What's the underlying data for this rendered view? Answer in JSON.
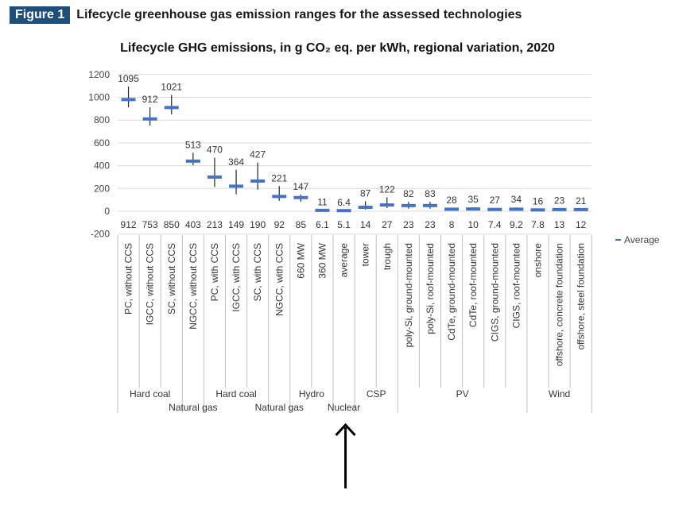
{
  "figure": {
    "badge": "Figure 1",
    "title": "Lifecycle greenhouse gas emission ranges for the assessed technologies"
  },
  "chart_data": {
    "type": "range",
    "title": "Lifecycle GHG emissions, in g CO₂ eq. per kWh, regional variation, 2020",
    "ylim": [
      -200,
      1200
    ],
    "yticks": [
      -200,
      0,
      200,
      400,
      600,
      800,
      1000,
      1200
    ],
    "legend": {
      "label": "Average",
      "color": "#4472c4",
      "position": "right"
    },
    "categories": [
      {
        "label": "PC, without CCS",
        "min": 912,
        "max": 1095,
        "avg": 980,
        "min_text": "912",
        "max_text": "1095"
      },
      {
        "label": "IGCC, without CCS",
        "min": 753,
        "max": 912,
        "avg": 810,
        "min_text": "753",
        "max_text": "912"
      },
      {
        "label": "SC, without CCS",
        "min": 850,
        "max": 1021,
        "avg": 910,
        "min_text": "850",
        "max_text": "1021"
      },
      {
        "label": "NGCC, without CCS",
        "min": 403,
        "max": 513,
        "avg": 440,
        "min_text": "403",
        "max_text": "513"
      },
      {
        "label": "PC, with CCS",
        "min": 213,
        "max": 470,
        "avg": 300,
        "min_text": "213",
        "max_text": "470"
      },
      {
        "label": "IGCC, with CCS",
        "min": 149,
        "max": 364,
        "avg": 220,
        "min_text": "149",
        "max_text": "364"
      },
      {
        "label": "SC, with CCS",
        "min": 190,
        "max": 427,
        "avg": 265,
        "min_text": "190",
        "max_text": "427"
      },
      {
        "label": "NGCC, with CCS",
        "min": 92,
        "max": 221,
        "avg": 130,
        "min_text": "92",
        "max_text": "221"
      },
      {
        "label": "660 MW",
        "min": 85,
        "max": 147,
        "avg": 120,
        "min_text": "85",
        "max_text": "147"
      },
      {
        "label": "360 MW",
        "min": 6.1,
        "max": 11,
        "avg": 8,
        "min_text": "6.1",
        "max_text": "11"
      },
      {
        "label": "average",
        "min": 5.1,
        "max": 6.4,
        "avg": 5.7,
        "min_text": "5.1",
        "max_text": "6.4"
      },
      {
        "label": "tower",
        "min": 14,
        "max": 87,
        "avg": 35,
        "min_text": "14",
        "max_text": "87"
      },
      {
        "label": "trough",
        "min": 27,
        "max": 122,
        "avg": 55,
        "min_text": "27",
        "max_text": "122"
      },
      {
        "label": "poly-Si, ground-mounted",
        "min": 23,
        "max": 82,
        "avg": 50,
        "min_text": "23",
        "max_text": "82"
      },
      {
        "label": "poly-Si, roof-mounted",
        "min": 23,
        "max": 83,
        "avg": 50,
        "min_text": "23",
        "max_text": "83"
      },
      {
        "label": "CdTe, ground-mounted",
        "min": 8,
        "max": 28,
        "avg": 18,
        "min_text": "8",
        "max_text": "28"
      },
      {
        "label": "CdTe, roof-mounted",
        "min": 10,
        "max": 35,
        "avg": 20,
        "min_text": "10",
        "max_text": "35"
      },
      {
        "label": "CIGS, ground-mounted",
        "min": 7.4,
        "max": 27,
        "avg": 16,
        "min_text": "7.4",
        "max_text": "27"
      },
      {
        "label": "CIGS, roof-mounted",
        "min": 9.2,
        "max": 34,
        "avg": 18,
        "min_text": "9.2",
        "max_text": "34"
      },
      {
        "label": "onshore",
        "min": 7.8,
        "max": 16,
        "avg": 12,
        "min_text": "7.8",
        "max_text": "16"
      },
      {
        "label": "offshore, concrete foundation",
        "min": 13,
        "max": 23,
        "avg": 15,
        "min_text": "13",
        "max_text": "23"
      },
      {
        "label": "offshore, steel foundation",
        "min": 12,
        "max": 21,
        "avg": 15,
        "min_text": "12",
        "max_text": "21"
      }
    ],
    "groups": [
      {
        "label": "Hard coal",
        "start": 0,
        "end": 2,
        "row": 1
      },
      {
        "label": "Natural gas",
        "start": 3,
        "end": 3,
        "row": 2
      },
      {
        "label": "Hard coal",
        "start": 4,
        "end": 6,
        "row": 1
      },
      {
        "label": "Natural gas",
        "start": 7,
        "end": 7,
        "row": 2
      },
      {
        "label": "Hydro",
        "start": 8,
        "end": 9,
        "row": 1
      },
      {
        "label": "Nuclear",
        "start": 10,
        "end": 10,
        "row": 2
      },
      {
        "label": "CSP",
        "start": 11,
        "end": 12,
        "row": 1
      },
      {
        "label": "PV",
        "start": 13,
        "end": 18,
        "row": 1
      },
      {
        "label": "Wind",
        "start": 19,
        "end": 21,
        "row": 1
      }
    ],
    "annotation": {
      "type": "arrow",
      "points_to": "Nuclear"
    }
  }
}
